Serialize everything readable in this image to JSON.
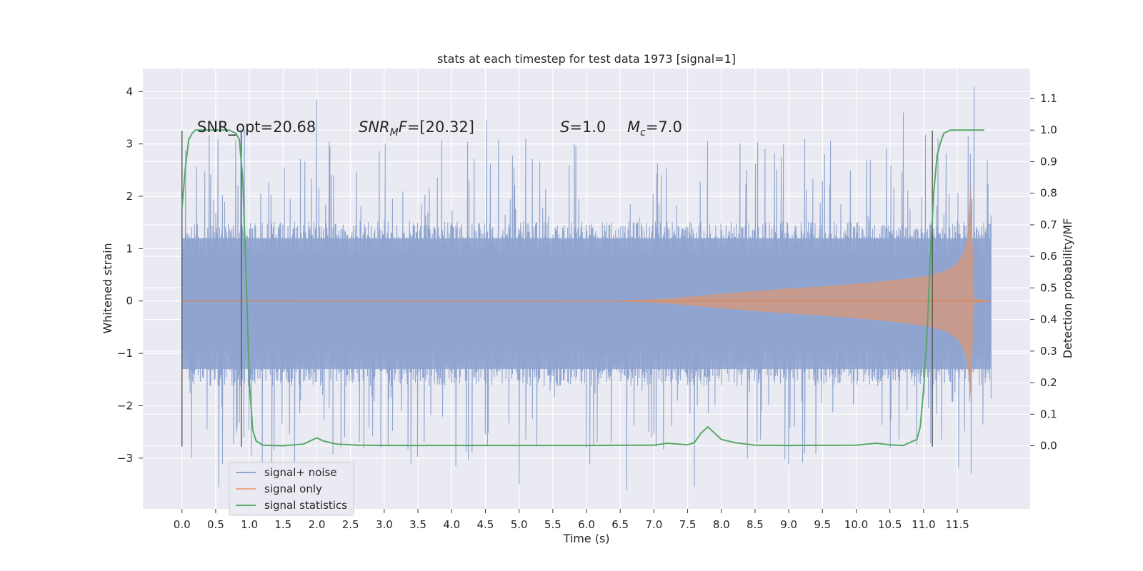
{
  "chart_data": {
    "type": "line",
    "title": "stats at each timestep for test data 1973 [signal=1]",
    "xlabel": "Time (s)",
    "ylabel": "Whitened strain",
    "ylabel_right": "Detection probability/MF",
    "xlim": [
      -0.58,
      12.58
    ],
    "ylim": [
      -3.97,
      4.44
    ],
    "ylim_right": [
      -0.2,
      1.195
    ],
    "x_ticks": [
      "0.0",
      "0.5",
      "1.0",
      "1.5",
      "2.0",
      "2.5",
      "3.0",
      "3.5",
      "4.0",
      "4.5",
      "5.0",
      "5.5",
      "6.0",
      "6.5",
      "7.0",
      "7.5",
      "8.0",
      "8.5",
      "9.0",
      "9.5",
      "10.0",
      "10.5",
      "11.0",
      "11.5"
    ],
    "y_ticks": [
      "4",
      "3",
      "2",
      "1",
      "0",
      "−1",
      "−2",
      "−3"
    ],
    "y_ticks_right": [
      "1.1",
      "1.0",
      "0.9",
      "0.8",
      "0.7",
      "0.6",
      "0.5",
      "0.4",
      "0.3",
      "0.2",
      "0.1",
      "0.0"
    ],
    "grid": true,
    "legend_position": "lower-left",
    "colors": {
      "background": "#eaeaf2",
      "noise": "#8fa5cf",
      "signal": "#dd8452",
      "stats": "#55a868",
      "vlines": "#555555"
    },
    "annotations": {
      "snr_opt": "SNR_opt=20.68",
      "snr_mf_base": "SNR",
      "snr_mf_sub": "M",
      "snr_mf_rest": "F=[20.32]",
      "s_base": "S",
      "s_rest": "=1.0",
      "mc_base": "M",
      "mc_sub": "c",
      "mc_rest": "=7.0"
    },
    "detection_boundaries": [
      0.0,
      0.88,
      11.13
    ],
    "noise_envelope": {
      "t_start": 0.0,
      "t_end": 12.0,
      "typical_max": 1.45,
      "typical_min": -1.55,
      "peak_max": 4.1,
      "peak_min": -3.6
    },
    "series": [
      {
        "name": "signal+ noise",
        "style": "dense noise"
      },
      {
        "name": "signal only",
        "style": "chirp",
        "x": [
          0.0,
          6.5,
          7.0,
          7.5,
          8.0,
          8.5,
          9.0,
          9.5,
          10.0,
          10.5,
          11.0,
          11.3,
          11.5,
          11.6,
          11.65,
          11.7,
          11.75,
          12.0
        ],
        "amplitude": [
          0.0,
          0.01,
          0.03,
          0.08,
          0.14,
          0.19,
          0.24,
          0.28,
          0.33,
          0.39,
          0.47,
          0.56,
          0.72,
          0.95,
          1.2,
          2.3,
          0.05,
          0.0
        ]
      },
      {
        "name": "signal statistics",
        "style": "line",
        "x": [
          0.0,
          0.05,
          0.1,
          0.15,
          0.2,
          0.3,
          0.5,
          0.7,
          0.8,
          0.85,
          0.9,
          0.95,
          1.0,
          1.05,
          1.1,
          1.2,
          1.5,
          1.8,
          1.9,
          2.0,
          2.1,
          2.3,
          2.6,
          3.0,
          4.0,
          5.0,
          6.0,
          7.0,
          7.2,
          7.5,
          7.6,
          7.7,
          7.8,
          7.9,
          8.0,
          8.2,
          8.5,
          9.0,
          10.0,
          10.3,
          10.5,
          10.7,
          10.9,
          10.95,
          11.0,
          11.05,
          11.1,
          11.15,
          11.2,
          11.25,
          11.3,
          11.4,
          11.6,
          11.9
        ],
        "values": [
          0.75,
          0.88,
          0.97,
          0.99,
          1.0,
          1.0,
          1.0,
          1.0,
          0.99,
          0.97,
          0.85,
          0.55,
          0.2,
          0.05,
          0.015,
          0.002,
          0.0,
          0.005,
          0.015,
          0.025,
          0.015,
          0.005,
          0.002,
          0.001,
          0.001,
          0.001,
          0.001,
          0.002,
          0.008,
          0.003,
          0.01,
          0.04,
          0.06,
          0.04,
          0.02,
          0.01,
          0.002,
          0.001,
          0.002,
          0.008,
          0.003,
          0.001,
          0.02,
          0.06,
          0.18,
          0.35,
          0.6,
          0.8,
          0.92,
          0.96,
          0.99,
          1.0,
          1.0,
          1.0
        ]
      }
    ]
  }
}
